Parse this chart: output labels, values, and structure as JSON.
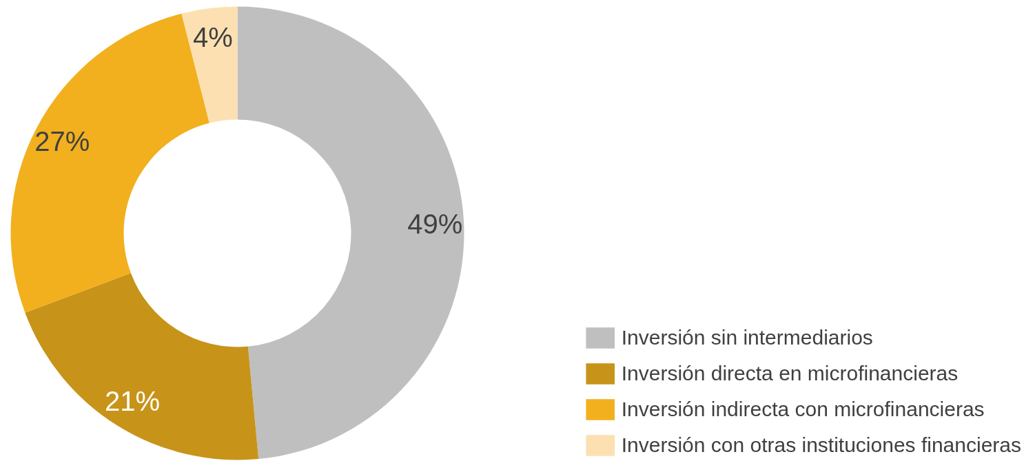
{
  "chart_data": {
    "type": "donut",
    "categories": [
      "Inversión sin intermediarios",
      "Inversión directa en microfinancieras",
      "Inversión indirecta con microfinancieras",
      "Inversión con otras instituciones financieras"
    ],
    "values": [
      49,
      21,
      27,
      4
    ],
    "colors": [
      "#bfbfbf",
      "#c79419",
      "#f2b01e",
      "#fce0b1"
    ],
    "value_labels": [
      "49%",
      "21%",
      "27%",
      "4%"
    ],
    "legend": "bottom right"
  }
}
